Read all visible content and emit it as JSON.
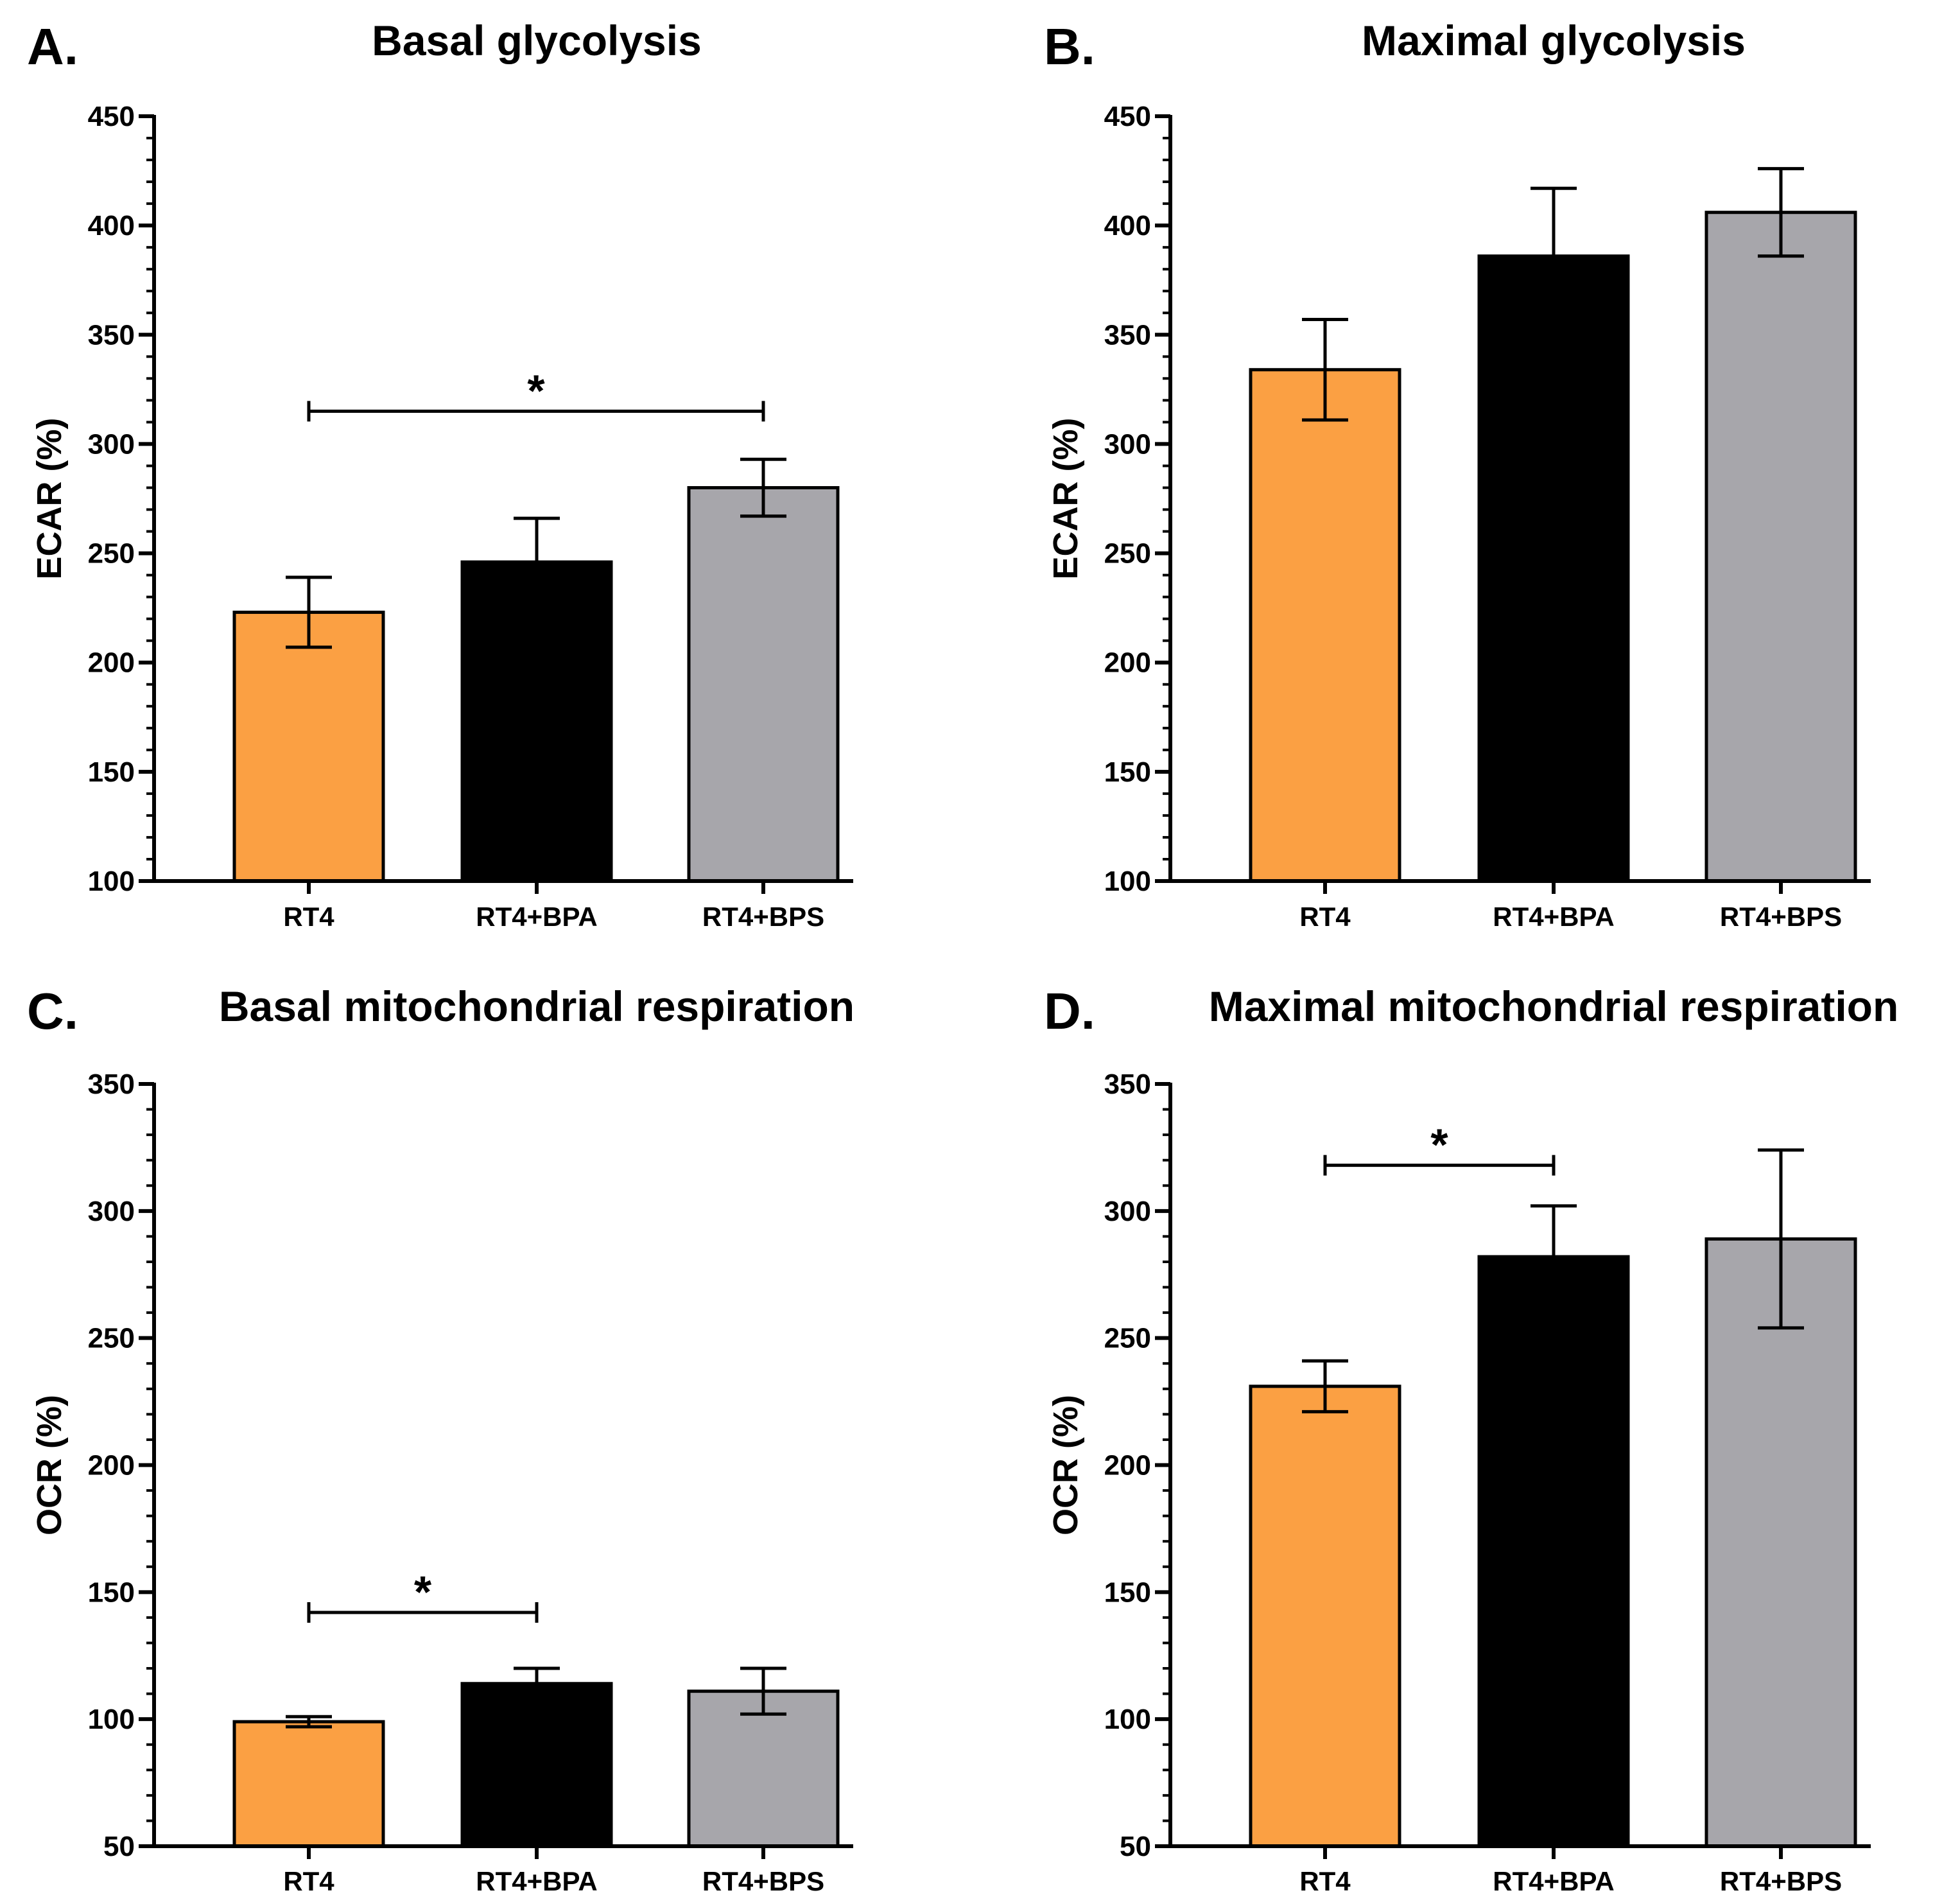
{
  "colors": {
    "RT4": "#fba043",
    "RT4+BPA": "#000000",
    "RT4+BPS": "#a7a6ab",
    "axis": "#000000",
    "bar_outline": "#000000"
  },
  "chart_data": [
    {
      "id": "A",
      "panel_label": "A.",
      "type": "bar",
      "title": "Basal glycolysis",
      "xlabel": "",
      "ylabel": "ECAR (%)",
      "ylim": [
        100,
        450
      ],
      "yticks": [
        100,
        150,
        200,
        250,
        300,
        350,
        400,
        450
      ],
      "ytick_labels": [
        "100",
        "150",
        "200",
        "250",
        "300",
        "350",
        "400",
        "450"
      ],
      "minor_tick_step": 10,
      "categories": [
        "RT4",
        "RT4+BPA",
        "RT4+BPS"
      ],
      "values": [
        223,
        246,
        280
      ],
      "errors": [
        16,
        20,
        13
      ],
      "error_direction": [
        "both",
        "up",
        "both"
      ],
      "significance": [
        {
          "from": 0,
          "to": 2,
          "y": 315,
          "label": "*"
        }
      ]
    },
    {
      "id": "B",
      "panel_label": "B.",
      "type": "bar",
      "title": "Maximal glycolysis",
      "xlabel": "",
      "ylabel": "ECAR (%)",
      "ylim": [
        100,
        450
      ],
      "yticks": [
        100,
        150,
        200,
        250,
        300,
        350,
        400,
        450
      ],
      "ytick_labels": [
        "100",
        "150",
        "200",
        "250",
        "300",
        "350",
        "400",
        "450"
      ],
      "minor_tick_step": 10,
      "categories": [
        "RT4",
        "RT4+BPA",
        "RT4+BPS"
      ],
      "values": [
        334,
        386,
        406
      ],
      "errors": [
        23,
        31,
        20
      ],
      "error_direction": [
        "both",
        "up",
        "both"
      ],
      "significance": []
    },
    {
      "id": "C",
      "panel_label": "C.",
      "type": "bar",
      "title": "Basal mitochondrial respiration",
      "xlabel": "",
      "ylabel": "OCR (%)",
      "ylim": [
        50,
        350
      ],
      "yticks": [
        50,
        100,
        150,
        200,
        250,
        300,
        350
      ],
      "ytick_labels": [
        "50",
        "100",
        "150",
        "200",
        "250",
        "300",
        "350"
      ],
      "minor_tick_step": 10,
      "categories": [
        "RT4",
        "RT4+BPA",
        "RT4+BPS"
      ],
      "values": [
        99,
        114,
        111
      ],
      "errors": [
        2,
        6,
        9
      ],
      "error_direction": [
        "both",
        "up",
        "both"
      ],
      "significance": [
        {
          "from": 0,
          "to": 1,
          "y": 142,
          "label": "*"
        }
      ]
    },
    {
      "id": "D",
      "panel_label": "D.",
      "type": "bar",
      "title": "Maximal mitochondrial respiration",
      "xlabel": "",
      "ylabel": "OCR (%)",
      "ylim": [
        50,
        350
      ],
      "yticks": [
        50,
        100,
        150,
        200,
        250,
        300,
        350
      ],
      "ytick_labels": [
        "50",
        "100",
        "150",
        "200",
        "250",
        "300",
        "350"
      ],
      "minor_tick_step": 10,
      "categories": [
        "RT4",
        "RT4+BPA",
        "RT4+BPS"
      ],
      "values": [
        231,
        282,
        289
      ],
      "errors": [
        10,
        20,
        35
      ],
      "error_direction": [
        "both",
        "up",
        "both"
      ],
      "significance": [
        {
          "from": 0,
          "to": 1,
          "y": 318,
          "label": "*"
        }
      ]
    }
  ]
}
